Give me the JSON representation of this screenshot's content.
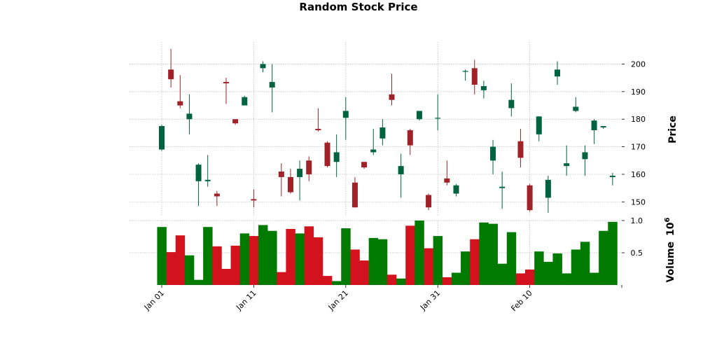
{
  "chart_data": {
    "type": "candlestick",
    "title": "Random Stock Price",
    "price_label": "Price",
    "volume_label": "Volume",
    "volume_exponent_label": "10",
    "volume_exponent_power": "6",
    "price_ylim": [
      145,
      208
    ],
    "price_ticks": [
      150,
      160,
      170,
      180,
      190,
      200
    ],
    "volume_ylim": [
      0,
      1.0
    ],
    "volume_ticks": [
      {
        "value": 0.5,
        "label": "0.5"
      },
      {
        "value": 1.0,
        "label": "1.0"
      }
    ],
    "x_tick_labels": [
      {
        "index": 0,
        "label": "Jan 01"
      },
      {
        "index": 10,
        "label": "Jan 11"
      },
      {
        "index": 20,
        "label": "Jan 21"
      },
      {
        "index": 30,
        "label": "Jan 31"
      },
      {
        "index": 40,
        "label": "Feb 10"
      }
    ],
    "grid": true,
    "colors": {
      "up": "#006340",
      "down": "#A02128",
      "vol_up": "#007A00",
      "vol_down": "#D2121C"
    },
    "ohlc": [
      {
        "date": "Jan 01",
        "open": 169,
        "high": 178,
        "low": 168.5,
        "close": 177.5,
        "volume": 0.9
      },
      {
        "date": "Jan 02",
        "open": 198,
        "high": 205.5,
        "low": 191.5,
        "close": 194.5,
        "volume": 0.51
      },
      {
        "date": "Jan 03",
        "open": 186.5,
        "high": 196,
        "low": 184,
        "close": 185,
        "volume": 0.77
      },
      {
        "date": "Jan 04",
        "open": 180,
        "high": 189,
        "low": 174.5,
        "close": 182,
        "volume": 0.46
      },
      {
        "date": "Jan 05",
        "open": 157.5,
        "high": 164,
        "low": 148.5,
        "close": 163.5,
        "volume": 0.08
      },
      {
        "date": "Jan 06",
        "open": 157.5,
        "high": 167,
        "low": 155.5,
        "close": 158,
        "volume": 0.9
      },
      {
        "date": "Jan 07",
        "open": 153,
        "high": 154,
        "low": 148.5,
        "close": 152,
        "volume": 0.6
      },
      {
        "date": "Jan 08",
        "open": 193.5,
        "high": 195,
        "low": 185.5,
        "close": 193,
        "volume": 0.25
      },
      {
        "date": "Jan 09",
        "open": 180,
        "high": 180,
        "low": 178,
        "close": 178.5,
        "volume": 0.61
      },
      {
        "date": "Jan 10",
        "open": 185,
        "high": 188.5,
        "low": 185,
        "close": 188,
        "volume": 0.8
      },
      {
        "date": "Jan 11",
        "open": 151,
        "high": 154.5,
        "low": 148,
        "close": 150.5,
        "volume": 0.76
      },
      {
        "date": "Jan 12",
        "open": 198.5,
        "high": 201,
        "low": 197,
        "close": 200,
        "volume": 0.93
      },
      {
        "date": "Jan 13",
        "open": 191.5,
        "high": 200,
        "low": 182.5,
        "close": 193.5,
        "volume": 0.84
      },
      {
        "date": "Jan 14",
        "open": 161,
        "high": 164,
        "low": 152,
        "close": 159,
        "volume": 0.2
      },
      {
        "date": "Jan 15",
        "open": 159,
        "high": 162,
        "low": 153,
        "close": 153.5,
        "volume": 0.87
      },
      {
        "date": "Jan 16",
        "open": 159,
        "high": 165,
        "low": 150.5,
        "close": 162,
        "volume": 0.8
      },
      {
        "date": "Jan 17",
        "open": 165,
        "high": 166.5,
        "low": 157.5,
        "close": 160,
        "volume": 0.91
      },
      {
        "date": "Jan 18",
        "open": 176.5,
        "high": 184,
        "low": 175.5,
        "close": 176,
        "volume": 0.74
      },
      {
        "date": "Jan 19",
        "open": 171.5,
        "high": 172,
        "low": 162.5,
        "close": 163,
        "volume": 0.14
      },
      {
        "date": "Jan 20",
        "open": 164.5,
        "high": 174.5,
        "low": 159,
        "close": 168,
        "volume": 0.06
      },
      {
        "date": "Jan 21",
        "open": 180.5,
        "high": 188,
        "low": 172.5,
        "close": 183,
        "volume": 0.88
      },
      {
        "date": "Jan 22",
        "open": 157,
        "high": 159,
        "low": 148,
        "close": 148,
        "volume": 0.55
      },
      {
        "date": "Jan 23",
        "open": 164.5,
        "high": 164.5,
        "low": 162,
        "close": 162.5,
        "volume": 0.38
      },
      {
        "date": "Jan 24",
        "open": 168,
        "high": 176.5,
        "low": 167,
        "close": 169,
        "volume": 0.73
      },
      {
        "date": "Jan 25",
        "open": 173,
        "high": 180,
        "low": 170.5,
        "close": 177,
        "volume": 0.71
      },
      {
        "date": "Jan 26",
        "open": 189,
        "high": 196.5,
        "low": 185,
        "close": 187,
        "volume": 0.16
      },
      {
        "date": "Jan 27",
        "open": 160,
        "high": 167.5,
        "low": 151.5,
        "close": 163,
        "volume": 0.1
      },
      {
        "date": "Jan 28",
        "open": 176,
        "high": 176.5,
        "low": 167,
        "close": 170.5,
        "volume": 0.92
      },
      {
        "date": "Jan 29",
        "open": 180,
        "high": 183,
        "low": 179.5,
        "close": 183,
        "volume": 1.0
      },
      {
        "date": "Jan 30",
        "open": 152.5,
        "high": 153,
        "low": 147,
        "close": 148,
        "volume": 0.57
      },
      {
        "date": "Jan 31",
        "open": 180.5,
        "high": 189,
        "low": 176,
        "close": 180.5,
        "volume": 0.76
      },
      {
        "date": "Feb 01",
        "open": 158.5,
        "high": 165,
        "low": 156,
        "close": 157,
        "volume": 0.12
      },
      {
        "date": "Feb 02",
        "open": 153,
        "high": 156.5,
        "low": 152,
        "close": 156,
        "volume": 0.19
      },
      {
        "date": "Feb 03",
        "open": 197.5,
        "high": 198,
        "low": 194,
        "close": 197.5,
        "volume": 0.52
      },
      {
        "date": "Feb 04",
        "open": 198.5,
        "high": 201.5,
        "low": 189,
        "close": 192.5,
        "volume": 0.71
      },
      {
        "date": "Feb 05",
        "open": 190.5,
        "high": 194,
        "low": 187.5,
        "close": 192,
        "volume": 0.97
      },
      {
        "date": "Feb 06",
        "open": 165,
        "high": 172.5,
        "low": 160,
        "close": 170,
        "volume": 0.95
      },
      {
        "date": "Feb 07",
        "open": 155,
        "high": 161,
        "low": 147.5,
        "close": 155.5,
        "volume": 0.33
      },
      {
        "date": "Feb 08",
        "open": 184,
        "high": 193,
        "low": 181,
        "close": 187,
        "volume": 0.82
      },
      {
        "date": "Feb 09",
        "open": 172,
        "high": 176.5,
        "low": 162.5,
        "close": 166,
        "volume": 0.18
      },
      {
        "date": "Feb 10",
        "open": 156,
        "high": 156.5,
        "low": 146.5,
        "close": 147,
        "volume": 0.24
      },
      {
        "date": "Feb 11",
        "open": 174.5,
        "high": 181,
        "low": 172,
        "close": 181,
        "volume": 0.52
      },
      {
        "date": "Feb 12",
        "open": 151.5,
        "high": 159.5,
        "low": 146,
        "close": 158,
        "volume": 0.36
      },
      {
        "date": "Feb 13",
        "open": 195.5,
        "high": 201,
        "low": 192.5,
        "close": 198,
        "volume": 0.49
      },
      {
        "date": "Feb 14",
        "open": 163,
        "high": 170.5,
        "low": 159.5,
        "close": 164,
        "volume": 0.18
      },
      {
        "date": "Feb 15",
        "open": 183,
        "high": 188,
        "low": 182.5,
        "close": 184.5,
        "volume": 0.55
      },
      {
        "date": "Feb 16",
        "open": 165.5,
        "high": 170.5,
        "low": 159.5,
        "close": 168,
        "volume": 0.67
      },
      {
        "date": "Feb 17",
        "open": 176,
        "high": 180,
        "low": 171,
        "close": 179.5,
        "volume": 0.19
      },
      {
        "date": "Feb 18",
        "open": 177,
        "high": 177.5,
        "low": 176.5,
        "close": 177.5,
        "volume": 0.84
      },
      {
        "date": "Feb 19",
        "open": 159,
        "high": 160.5,
        "low": 156,
        "close": 159.5,
        "volume": 0.98
      }
    ]
  }
}
